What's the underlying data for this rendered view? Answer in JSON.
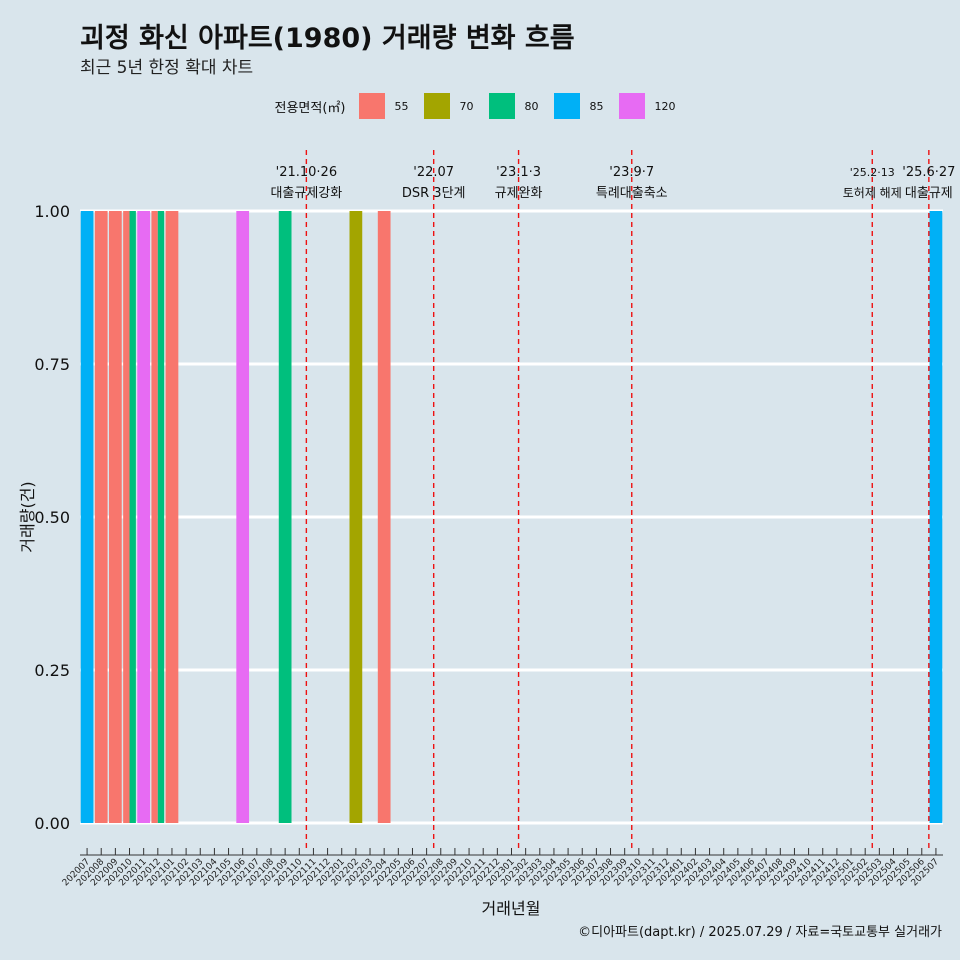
{
  "title": "괴정 화신 아파트(1980) 거래량 변화 흐름",
  "subtitle": "최근 5년 한정 확대 차트",
  "caption": "©디아파트(dapt.kr) / 2025.07.29 / 자료=국토교통부 실거래가",
  "legend": {
    "title": "전용면적(㎡)",
    "position": "top",
    "items": [
      {
        "label": "55",
        "color": "#f8766d"
      },
      {
        "label": "70",
        "color": "#a3a500"
      },
      {
        "label": "80",
        "color": "#00bf7d"
      },
      {
        "label": "85",
        "color": "#00b0f6"
      },
      {
        "label": "120",
        "color": "#e76bf3"
      }
    ]
  },
  "chart_data": {
    "type": "bar",
    "xlabel": "거래년월",
    "ylabel": "거래량(건)",
    "ylim": [
      0,
      1
    ],
    "yticks": [
      "0.00",
      "0.25",
      "0.50",
      "0.75",
      "1.00"
    ],
    "grid": true,
    "categories": [
      "202007",
      "202008",
      "202009",
      "202010",
      "202011",
      "202012",
      "202101",
      "202102",
      "202103",
      "202104",
      "202105",
      "202106",
      "202107",
      "202108",
      "202109",
      "202110",
      "202111",
      "202112",
      "202201",
      "202202",
      "202203",
      "202204",
      "202205",
      "202206",
      "202207",
      "202208",
      "202209",
      "202210",
      "202211",
      "202212",
      "202301",
      "202302",
      "202303",
      "202304",
      "202305",
      "202306",
      "202307",
      "202308",
      "202309",
      "202310",
      "202311",
      "202312",
      "202401",
      "202402",
      "202403",
      "202404",
      "202405",
      "202406",
      "202407",
      "202408",
      "202409",
      "202410",
      "202411",
      "202412",
      "202501",
      "202502",
      "202503",
      "202504",
      "202505",
      "202506",
      "202507"
    ],
    "bars": [
      {
        "month": "202007",
        "area": "85",
        "value": 1
      },
      {
        "month": "202008",
        "area": "55",
        "value": 1
      },
      {
        "month": "202009",
        "area": "55",
        "value": 1
      },
      {
        "month": "202010",
        "area": "55",
        "value": 1
      },
      {
        "month": "202010",
        "area": "80",
        "value": 1
      },
      {
        "month": "202011",
        "area": "120",
        "value": 1
      },
      {
        "month": "202012",
        "area": "55",
        "value": 1
      },
      {
        "month": "202012",
        "area": "80",
        "value": 1
      },
      {
        "month": "202101",
        "area": "55",
        "value": 1
      },
      {
        "month": "202106",
        "area": "120",
        "value": 1
      },
      {
        "month": "202109",
        "area": "80",
        "value": 1
      },
      {
        "month": "202202",
        "area": "70",
        "value": 1
      },
      {
        "month": "202204",
        "area": "55",
        "value": 1
      },
      {
        "month": "202507",
        "area": "85",
        "value": 1
      }
    ],
    "events": [
      {
        "x": 15.5,
        "date": "'21.10·26",
        "label": "대출규제강화"
      },
      {
        "x": 24.5,
        "date": "'22.07",
        "label": "DSR 3단계"
      },
      {
        "x": 30.5,
        "date": "'23.1·3",
        "label": "규제완화"
      },
      {
        "x": 38.5,
        "date": "'23.9·7",
        "label": "특례대출축소"
      },
      {
        "x": 55.5,
        "date": "'25.2·13",
        "label": "토허제 해제"
      },
      {
        "x": 59.5,
        "date": "'25.6·27",
        "label": "대출규제"
      }
    ]
  }
}
